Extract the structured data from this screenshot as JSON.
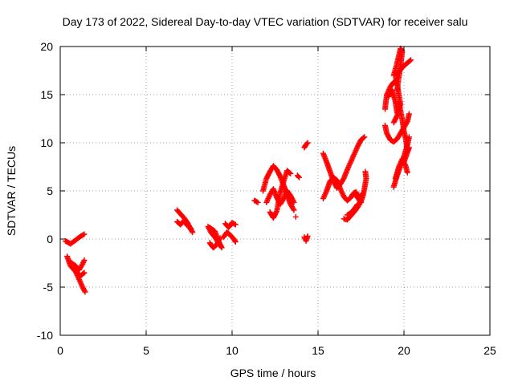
{
  "chart_data": {
    "type": "scatter",
    "title": "Day 173 of 2022, Sidereal Day-to-day VTEC variation (SDTVAR) for receiver salu",
    "xlabel": "GPS time / hours",
    "ylabel": "SDTVAR / TECUs",
    "xlim": [
      0,
      25
    ],
    "ylim": [
      -10,
      20
    ],
    "xticks": [
      "0",
      "5",
      "10",
      "15",
      "20",
      "25"
    ],
    "yticks": [
      "-10",
      "-5",
      "0",
      "5",
      "10",
      "15",
      "20"
    ],
    "grid": true,
    "marker": "+",
    "series_color": "#ff0000",
    "series": [
      {
        "name": "SDTVAR",
        "segments": [
          [
            [
              0.3,
              -0.2
            ],
            [
              0.6,
              -0.5
            ],
            [
              0.9,
              -0.1
            ],
            [
              1.2,
              0.3
            ],
            [
              1.4,
              0.5
            ]
          ],
          [
            [
              0.4,
              -1.8
            ],
            [
              0.6,
              -2.8
            ],
            [
              0.9,
              -3.4
            ],
            [
              1.1,
              -4.2
            ],
            [
              1.3,
              -5.0
            ],
            [
              1.45,
              -5.5
            ]
          ],
          [
            [
              0.6,
              -2.4
            ],
            [
              0.9,
              -2.8
            ],
            [
              1.1,
              -3.2
            ],
            [
              1.3,
              -2.6
            ],
            [
              1.4,
              -2.2
            ]
          ],
          [
            [
              0.8,
              -3.0
            ],
            [
              1.0,
              -3.6
            ],
            [
              1.2,
              -3.8
            ],
            [
              1.4,
              -3.5
            ]
          ],
          [
            [
              6.8,
              3.0
            ],
            [
              7.0,
              2.6
            ],
            [
              7.2,
              2.2
            ],
            [
              7.4,
              1.7
            ],
            [
              7.6,
              1.0
            ],
            [
              7.7,
              0.7
            ]
          ],
          [
            [
              6.8,
              1.8
            ],
            [
              7.0,
              1.5
            ],
            [
              7.2,
              1.9
            ],
            [
              7.4,
              1.4
            ],
            [
              7.6,
              1.1
            ]
          ],
          [
            [
              8.6,
              1.3
            ],
            [
              8.8,
              0.6
            ],
            [
              9.0,
              0.2
            ],
            [
              9.2,
              -0.4
            ],
            [
              9.4,
              -0.9
            ],
            [
              9.2,
              -0.2
            ],
            [
              9.0,
              0.8
            ],
            [
              8.7,
              1.2
            ]
          ],
          [
            [
              8.7,
              -0.4
            ],
            [
              8.9,
              -0.9
            ],
            [
              9.1,
              -0.6
            ],
            [
              9.3,
              0.1
            ]
          ],
          [
            [
              9.5,
              0.2
            ],
            [
              9.7,
              0.7
            ],
            [
              9.9,
              0.4
            ],
            [
              10.1,
              0.0
            ],
            [
              10.2,
              -0.3
            ]
          ],
          [
            [
              9.6,
              1.6
            ],
            [
              9.8,
              1.2
            ],
            [
              10.0,
              1.7
            ],
            [
              10.2,
              1.5
            ]
          ],
          [
            [
              11.3,
              4.0
            ],
            [
              11.5,
              3.8
            ]
          ],
          [
            [
              11.8,
              5.0
            ],
            [
              12.0,
              6.3
            ],
            [
              12.2,
              7.0
            ],
            [
              12.4,
              7.6
            ],
            [
              12.6,
              7.2
            ],
            [
              12.8,
              6.5
            ],
            [
              13.0,
              5.6
            ],
            [
              13.2,
              4.6
            ],
            [
              13.4,
              3.6
            ],
            [
              13.6,
              3.0
            ]
          ],
          [
            [
              12.0,
              3.8
            ],
            [
              12.2,
              4.6
            ],
            [
              12.4,
              5.2
            ],
            [
              12.6,
              4.3
            ],
            [
              12.8,
              3.6
            ],
            [
              13.0,
              4.2
            ],
            [
              13.2,
              5.0
            ],
            [
              13.4,
              4.5
            ],
            [
              13.6,
              3.8
            ]
          ],
          [
            [
              12.2,
              2.8
            ],
            [
              12.4,
              2.2
            ],
            [
              12.6,
              2.9
            ],
            [
              12.8,
              4.8
            ],
            [
              13.0,
              6.0
            ],
            [
              13.2,
              7.1
            ],
            [
              13.4,
              6.8
            ]
          ],
          [
            [
              13.8,
              6.6
            ],
            [
              13.9,
              6.4
            ]
          ],
          [
            [
              13.7,
              2.3
            ]
          ],
          [
            [
              14.2,
              9.5
            ],
            [
              14.3,
              9.8
            ],
            [
              14.4,
              10.0
            ]
          ],
          [
            [
              14.2,
              0.2
            ],
            [
              14.3,
              -0.2
            ],
            [
              14.4,
              0.3
            ]
          ],
          [
            [
              15.3,
              8.9
            ],
            [
              15.5,
              8.0
            ],
            [
              15.7,
              7.0
            ],
            [
              15.9,
              6.0
            ],
            [
              16.1,
              5.3
            ],
            [
              16.3,
              5.7
            ],
            [
              16.5,
              6.3
            ],
            [
              16.7,
              7.2
            ],
            [
              16.9,
              8.0
            ],
            [
              17.1,
              8.8
            ],
            [
              17.3,
              9.6
            ],
            [
              17.5,
              10.3
            ],
            [
              17.7,
              10.6
            ]
          ],
          [
            [
              15.3,
              4.2
            ],
            [
              15.5,
              5.0
            ],
            [
              15.7,
              6.0
            ],
            [
              15.9,
              6.4
            ],
            [
              16.1,
              6.1
            ],
            [
              16.3,
              5.2
            ],
            [
              16.5,
              4.4
            ],
            [
              16.7,
              4.0
            ],
            [
              16.9,
              4.3
            ],
            [
              17.1,
              4.8
            ],
            [
              17.3,
              4.3
            ],
            [
              17.5,
              3.8
            ]
          ],
          [
            [
              16.5,
              2.1
            ],
            [
              16.7,
              2.0
            ],
            [
              16.9,
              2.4
            ],
            [
              17.1,
              2.8
            ],
            [
              17.3,
              3.3
            ],
            [
              17.5,
              3.9
            ],
            [
              17.6,
              4.4
            ],
            [
              17.7,
              5.2
            ],
            [
              17.8,
              6.3
            ],
            [
              17.75,
              7.0
            ]
          ],
          [
            [
              16.7,
              2.5
            ],
            [
              16.9,
              2.7
            ],
            [
              17.1,
              3.1
            ],
            [
              17.3,
              3.6
            ]
          ],
          [
            [
              17.0,
              4.6
            ],
            [
              17.2,
              4.9
            ],
            [
              17.4,
              4.3
            ],
            [
              17.6,
              4.7
            ]
          ],
          [
            [
              18.9,
              13.5
            ],
            [
              19.0,
              15.0
            ],
            [
              19.2,
              15.8
            ],
            [
              19.4,
              16.3
            ],
            [
              19.6,
              16.2
            ],
            [
              19.7,
              15.0
            ],
            [
              19.8,
              14.0
            ],
            [
              19.6,
              12.8
            ],
            [
              19.4,
              12.1
            ]
          ],
          [
            [
              19.1,
              14.8
            ],
            [
              19.3,
              15.5
            ],
            [
              19.5,
              14.3
            ],
            [
              19.6,
              13.1
            ]
          ],
          [
            [
              19.4,
              17.0
            ],
            [
              19.6,
              18.3
            ],
            [
              19.8,
              19.8
            ],
            [
              19.9,
              19.5
            ],
            [
              19.8,
              18.0
            ],
            [
              19.7,
              16.8
            ],
            [
              19.6,
              15.5
            ]
          ],
          [
            [
              19.5,
              16.2
            ],
            [
              19.6,
              17.1
            ]
          ],
          [
            [
              18.9,
              11.8
            ],
            [
              19.0,
              11.0
            ],
            [
              19.2,
              10.3
            ],
            [
              19.4,
              10.1
            ],
            [
              19.6,
              10.4
            ],
            [
              19.8,
              11.0
            ],
            [
              20.0,
              11.6
            ],
            [
              20.2,
              12.2
            ],
            [
              20.3,
              13.0
            ]
          ],
          [
            [
              19.6,
              17.2
            ],
            [
              19.8,
              17.6
            ],
            [
              20.0,
              18.0
            ],
            [
              20.2,
              18.3
            ],
            [
              20.4,
              18.6
            ]
          ],
          [
            [
              19.7,
              14.2
            ],
            [
              19.9,
              12.4
            ],
            [
              20.0,
              11.2
            ],
            [
              20.1,
              10.4
            ],
            [
              20.2,
              9.2
            ]
          ],
          [
            [
              19.4,
              5.4
            ],
            [
              19.6,
              6.6
            ],
            [
              19.8,
              7.6
            ],
            [
              20.0,
              8.6
            ],
            [
              20.2,
              9.8
            ],
            [
              20.3,
              10.6
            ]
          ],
          [
            [
              19.5,
              6.3
            ],
            [
              19.7,
              7.5
            ],
            [
              19.9,
              8.3
            ],
            [
              20.1,
              7.6
            ],
            [
              20.2,
              6.9
            ]
          ],
          [
            [
              20.0,
              8.0
            ],
            [
              20.2,
              9.0
            ],
            [
              20.3,
              9.5
            ]
          ]
        ]
      }
    ]
  }
}
